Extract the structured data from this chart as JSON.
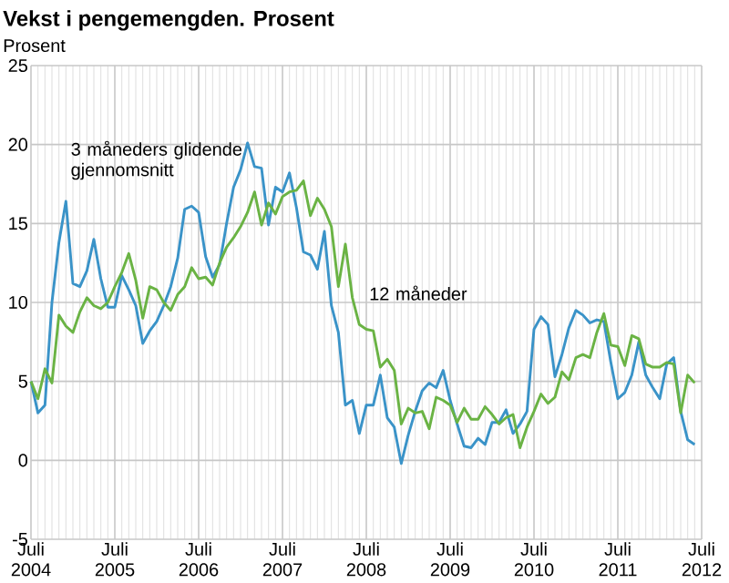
{
  "chart_data": {
    "type": "line",
    "title": "Vekst i pengemengden. Prosent",
    "ylabel": "Prosent",
    "x": [
      "2004-07",
      "2004-08",
      "2004-09",
      "2004-10",
      "2004-11",
      "2004-12",
      "2005-01",
      "2005-02",
      "2005-03",
      "2005-04",
      "2005-05",
      "2005-06",
      "2005-07",
      "2005-08",
      "2005-09",
      "2005-10",
      "2005-11",
      "2005-12",
      "2006-01",
      "2006-02",
      "2006-03",
      "2006-04",
      "2006-05",
      "2006-06",
      "2006-07",
      "2006-08",
      "2006-09",
      "2006-10",
      "2006-11",
      "2006-12",
      "2007-01",
      "2007-02",
      "2007-03",
      "2007-04",
      "2007-05",
      "2007-06",
      "2007-07",
      "2007-08",
      "2007-09",
      "2007-10",
      "2007-11",
      "2007-12",
      "2008-01",
      "2008-02",
      "2008-03",
      "2008-04",
      "2008-05",
      "2008-06",
      "2008-07",
      "2008-08",
      "2008-09",
      "2008-10",
      "2008-11",
      "2008-12",
      "2009-01",
      "2009-02",
      "2009-03",
      "2009-04",
      "2009-05",
      "2009-06",
      "2009-07",
      "2009-08",
      "2009-09",
      "2009-10",
      "2009-11",
      "2009-12",
      "2010-01",
      "2010-02",
      "2010-03",
      "2010-04",
      "2010-05",
      "2010-06",
      "2010-07",
      "2010-08",
      "2010-09",
      "2010-10",
      "2010-11",
      "2010-12",
      "2011-01",
      "2011-02",
      "2011-03",
      "2011-04",
      "2011-05",
      "2011-06",
      "2011-07",
      "2011-08",
      "2011-09",
      "2011-10",
      "2011-11",
      "2011-12",
      "2012-01",
      "2012-02",
      "2012-03",
      "2012-04",
      "2012-05",
      "2012-06"
    ],
    "series": [
      {
        "name": "3 måneders glidende gjennomsnitt",
        "color": "#3a93c8",
        "values": [
          5.0,
          3.0,
          3.5,
          10.0,
          13.8,
          16.4,
          11.2,
          11.0,
          12.0,
          14.0,
          11.5,
          9.7,
          9.7,
          11.7,
          10.8,
          9.8,
          7.4,
          8.2,
          8.8,
          9.8,
          11.0,
          12.8,
          15.9,
          16.1,
          15.7,
          12.9,
          11.6,
          12.4,
          15.0,
          17.3,
          18.4,
          20.1,
          18.6,
          18.5,
          14.9,
          17.3,
          17.0,
          18.2,
          16.0,
          13.2,
          13.0,
          12.1,
          14.5,
          9.8,
          8.1,
          3.5,
          3.8,
          1.7,
          3.5,
          3.5,
          5.4,
          2.7,
          2.1,
          -0.2,
          1.6,
          3.1,
          4.4,
          4.9,
          4.6,
          5.7,
          3.8,
          2.3,
          0.9,
          0.8,
          1.4,
          1.0,
          2.4,
          2.4,
          3.2,
          1.7,
          2.3,
          3.1,
          8.3,
          9.1,
          8.6,
          5.3,
          6.7,
          8.4,
          9.5,
          9.2,
          8.7,
          8.9,
          8.8,
          6.2,
          3.9,
          4.3,
          5.4,
          7.5,
          5.4,
          4.6,
          3.9,
          6.1,
          6.5,
          3.1,
          1.3,
          1.0
        ]
      },
      {
        "name": "12 måneder",
        "color": "#6ab344",
        "values": [
          5.0,
          3.9,
          5.8,
          4.9,
          9.2,
          8.5,
          8.1,
          9.4,
          10.3,
          9.8,
          9.6,
          10.0,
          11.0,
          11.9,
          13.1,
          11.4,
          9.0,
          11.0,
          10.8,
          10.0,
          9.5,
          10.5,
          11.0,
          12.2,
          11.5,
          11.6,
          11.1,
          12.5,
          13.5,
          14.1,
          14.8,
          15.7,
          17.0,
          14.9,
          16.3,
          15.6,
          16.7,
          17.0,
          17.1,
          17.7,
          15.5,
          16.6,
          15.9,
          14.8,
          11.0,
          13.7,
          10.3,
          8.6,
          8.3,
          8.2,
          5.9,
          6.4,
          5.7,
          2.3,
          3.3,
          3.0,
          3.1,
          2.0,
          4.0,
          3.8,
          3.5,
          2.4,
          3.3,
          2.6,
          2.6,
          3.4,
          2.9,
          2.3,
          2.7,
          2.9,
          0.8,
          2.1,
          3.1,
          4.2,
          3.6,
          4.0,
          5.6,
          5.1,
          6.5,
          6.7,
          6.5,
          8.1,
          9.3,
          7.3,
          7.2,
          6.0,
          7.9,
          7.7,
          6.1,
          5.9,
          5.9,
          6.2,
          6.1,
          3.0,
          5.4,
          4.9
        ]
      }
    ],
    "xlim": [
      "2004-07",
      "2012-07"
    ],
    "xticks": [
      {
        "value": "2004-07",
        "label": "Juli 2004"
      },
      {
        "value": "2005-07",
        "label": "Juli 2005"
      },
      {
        "value": "2006-07",
        "label": "Juli 2006"
      },
      {
        "value": "2007-07",
        "label": "Juli 2007"
      },
      {
        "value": "2008-07",
        "label": "Juli 2008"
      },
      {
        "value": "2009-07",
        "label": "Juli 2009"
      },
      {
        "value": "2010-07",
        "label": "Juli 2010"
      },
      {
        "value": "2011-07",
        "label": "Juli 2011"
      },
      {
        "value": "2012-07",
        "label": "Juli 2012"
      }
    ],
    "ylim": [
      -5,
      25
    ],
    "yticks": [
      -5,
      0,
      5,
      10,
      15,
      20,
      25
    ],
    "grid": true,
    "line_style": "solid",
    "marker": "none"
  }
}
